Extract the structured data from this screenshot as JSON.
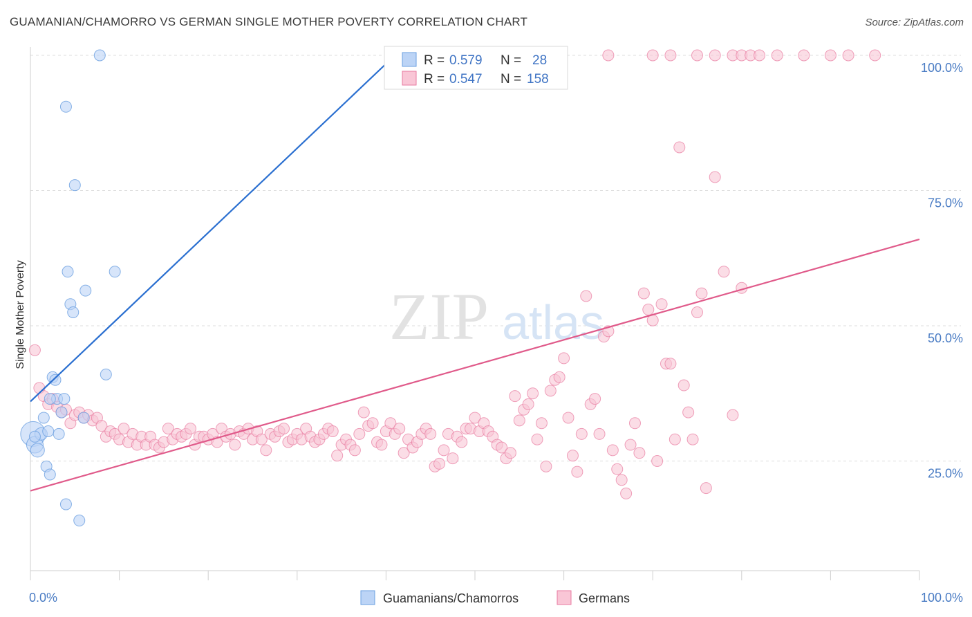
{
  "title": "GUAMANIAN/CHAMORRO VS GERMAN SINGLE MOTHER POVERTY CORRELATION CHART",
  "source": "Source: ZipAtlas.com",
  "watermark": {
    "zip": "ZIP",
    "atlas": "atlas"
  },
  "chart_data": {
    "type": "scatter",
    "ylabel": "Single Mother Poverty",
    "xlim": [
      0,
      100
    ],
    "ylim": [
      0,
      100
    ],
    "x_tick_labels": [
      {
        "value": 0,
        "label": "0.0%"
      },
      {
        "value": 100,
        "label": "100.0%"
      }
    ],
    "y_tick_labels": [
      {
        "value": 25,
        "label": "25.0%"
      },
      {
        "value": 50,
        "label": "50.0%"
      },
      {
        "value": 75,
        "label": "75.0%"
      },
      {
        "value": 100,
        "label": "100.0%"
      }
    ],
    "grid": "horizontal-dashed",
    "legend": {
      "position": "top-center",
      "rows": [
        {
          "r_label": "R = ",
          "r_value": "0.579",
          "n_label": "N = ",
          "n_value": "28"
        },
        {
          "r_label": "R = ",
          "r_value": "0.547",
          "n_label": "N = ",
          "n_value": "158"
        }
      ]
    },
    "series": [
      {
        "name": "Guamanians/Chamorros",
        "color": "#6a9fe0",
        "fill": "#bcd4f6",
        "line_color": "#2a6fd0",
        "trend": {
          "x0": 0,
          "y0": 36,
          "x1": 41,
          "y1": 100
        },
        "points": [
          [
            0.3,
            30,
            18
          ],
          [
            0.5,
            28,
            12
          ],
          [
            0.8,
            27,
            10
          ],
          [
            1.2,
            30,
            9
          ],
          [
            1.5,
            33,
            8
          ],
          [
            1.8,
            24,
            8
          ],
          [
            2,
            30.5,
            8
          ],
          [
            2.2,
            22.5,
            8
          ],
          [
            2.5,
            40.5,
            8
          ],
          [
            2.8,
            40,
            8
          ],
          [
            3,
            36.5,
            8
          ],
          [
            3.2,
            30,
            8
          ],
          [
            3.5,
            34,
            8
          ],
          [
            3.8,
            36.5,
            8
          ],
          [
            4,
            17,
            8
          ],
          [
            4,
            90.5,
            8
          ],
          [
            4.2,
            60,
            8
          ],
          [
            4.5,
            54,
            8
          ],
          [
            4.8,
            52.5,
            8
          ],
          [
            5,
            76,
            8
          ],
          [
            5.5,
            14,
            8
          ],
          [
            6.2,
            56.5,
            8
          ],
          [
            6,
            33,
            8
          ],
          [
            7.8,
            100,
            8
          ],
          [
            8.5,
            41,
            8
          ],
          [
            9.5,
            60,
            8
          ],
          [
            0.5,
            29.5,
            8
          ],
          [
            2.2,
            36.5,
            8
          ]
        ]
      },
      {
        "name": "Germans",
        "color": "#e87aa0",
        "fill": "#f9c6d6",
        "line_color": "#e05a8a",
        "trend": {
          "x0": 0,
          "y0": 19.5,
          "x1": 100,
          "y1": 66
        },
        "points": [
          [
            0.5,
            45.5
          ],
          [
            1,
            38.5
          ],
          [
            1.5,
            37
          ],
          [
            2,
            35.5
          ],
          [
            2.5,
            36.5
          ],
          [
            3,
            35
          ],
          [
            3.5,
            34
          ],
          [
            4,
            34.5
          ],
          [
            4.5,
            32
          ],
          [
            5,
            33.5
          ],
          [
            5.5,
            34
          ],
          [
            6,
            33
          ],
          [
            6.5,
            33.5
          ],
          [
            7,
            32.5
          ],
          [
            7.5,
            33
          ],
          [
            8,
            31.5
          ],
          [
            8.5,
            29.5
          ],
          [
            9,
            30.5
          ],
          [
            9.5,
            30
          ],
          [
            10,
            29
          ],
          [
            10.5,
            31
          ],
          [
            11,
            28.5
          ],
          [
            11.5,
            30
          ],
          [
            12,
            28
          ],
          [
            12.5,
            29.5
          ],
          [
            13,
            28
          ],
          [
            13.5,
            29.5
          ],
          [
            14,
            28
          ],
          [
            14.5,
            27.5
          ],
          [
            15,
            28.5
          ],
          [
            15.5,
            31
          ],
          [
            16,
            29
          ],
          [
            16.5,
            30
          ],
          [
            17,
            29.5
          ],
          [
            17.5,
            30
          ],
          [
            18,
            31
          ],
          [
            18.5,
            28
          ],
          [
            19,
            29.5
          ],
          [
            19.5,
            29.5
          ],
          [
            20,
            29
          ],
          [
            20.5,
            30
          ],
          [
            21,
            28.5
          ],
          [
            21.5,
            31
          ],
          [
            22,
            29.5
          ],
          [
            22.5,
            30
          ],
          [
            23,
            28
          ],
          [
            23.5,
            30.5
          ],
          [
            24,
            30
          ],
          [
            24.5,
            31
          ],
          [
            25,
            29
          ],
          [
            25.5,
            30.5
          ],
          [
            26,
            29
          ],
          [
            26.5,
            27
          ],
          [
            27,
            30
          ],
          [
            27.5,
            29.5
          ],
          [
            28,
            30.5
          ],
          [
            28.5,
            31
          ],
          [
            29,
            28.5
          ],
          [
            29.5,
            29
          ],
          [
            30,
            30
          ],
          [
            30.5,
            29
          ],
          [
            31,
            31
          ],
          [
            31.5,
            29.5
          ],
          [
            32,
            28.5
          ],
          [
            32.5,
            29
          ],
          [
            33,
            30
          ],
          [
            33.5,
            31
          ],
          [
            34,
            30.5
          ],
          [
            34.5,
            26
          ],
          [
            35,
            28
          ],
          [
            35.5,
            29
          ],
          [
            36,
            28
          ],
          [
            36.5,
            27
          ],
          [
            37,
            30
          ],
          [
            37.5,
            34
          ],
          [
            38,
            31.5
          ],
          [
            38.5,
            32
          ],
          [
            39,
            28.5
          ],
          [
            39.5,
            28
          ],
          [
            40,
            30.5
          ],
          [
            40.5,
            32
          ],
          [
            41,
            30
          ],
          [
            41.5,
            31
          ],
          [
            42,
            26.5
          ],
          [
            42.5,
            29
          ],
          [
            43,
            27.5
          ],
          [
            43.5,
            28.5
          ],
          [
            44,
            30
          ],
          [
            44.5,
            31
          ],
          [
            45,
            30
          ],
          [
            45.5,
            24
          ],
          [
            46,
            24.5
          ],
          [
            46.5,
            27
          ],
          [
            47,
            30
          ],
          [
            47.5,
            25.5
          ],
          [
            48,
            29.5
          ],
          [
            48.5,
            28.5
          ],
          [
            49,
            31
          ],
          [
            49.5,
            31
          ],
          [
            50,
            33
          ],
          [
            50.5,
            30.5
          ],
          [
            51,
            32
          ],
          [
            51.5,
            30.5
          ],
          [
            52,
            29.5
          ],
          [
            52.5,
            28
          ],
          [
            53,
            27.5
          ],
          [
            53.5,
            25.5
          ],
          [
            54,
            26.5
          ],
          [
            54.5,
            37
          ],
          [
            55,
            32.5
          ],
          [
            55.5,
            34.5
          ],
          [
            56,
            35.5
          ],
          [
            56.5,
            37.5
          ],
          [
            57,
            29
          ],
          [
            57.5,
            32
          ],
          [
            58,
            24
          ],
          [
            58.5,
            38
          ],
          [
            59,
            40
          ],
          [
            59.5,
            40.5
          ],
          [
            60,
            44
          ],
          [
            60.5,
            33
          ],
          [
            61,
            26
          ],
          [
            61.5,
            23
          ],
          [
            62,
            30
          ],
          [
            62.5,
            55.5
          ],
          [
            63,
            35.5
          ],
          [
            63.5,
            36.5
          ],
          [
            64,
            30
          ],
          [
            64.5,
            48
          ],
          [
            65,
            49
          ],
          [
            65.5,
            27
          ],
          [
            66,
            23.5
          ],
          [
            66.5,
            21.5
          ],
          [
            67,
            19
          ],
          [
            67.5,
            28
          ],
          [
            68,
            32
          ],
          [
            68.5,
            26.5
          ],
          [
            69,
            56
          ],
          [
            69.5,
            53
          ],
          [
            70,
            51
          ],
          [
            70.5,
            25
          ],
          [
            71,
            54
          ],
          [
            71.5,
            43
          ],
          [
            72,
            43
          ],
          [
            72.5,
            29
          ],
          [
            73,
            83
          ],
          [
            73.5,
            39
          ],
          [
            74,
            34
          ],
          [
            74.5,
            29
          ],
          [
            75,
            52.5
          ],
          [
            75.5,
            56
          ],
          [
            76,
            20
          ],
          [
            77,
            77.5
          ],
          [
            78,
            60
          ],
          [
            79,
            33.5
          ],
          [
            80,
            57
          ]
        ],
        "top_points": [
          [
            65,
            100
          ],
          [
            70,
            100
          ],
          [
            72,
            100
          ],
          [
            75,
            100
          ],
          [
            77,
            100
          ],
          [
            79,
            100
          ],
          [
            80,
            100
          ],
          [
            81,
            100
          ],
          [
            82,
            100
          ],
          [
            84,
            100
          ],
          [
            87,
            100
          ],
          [
            90,
            100
          ],
          [
            92,
            100
          ],
          [
            95,
            100
          ]
        ]
      }
    ]
  }
}
